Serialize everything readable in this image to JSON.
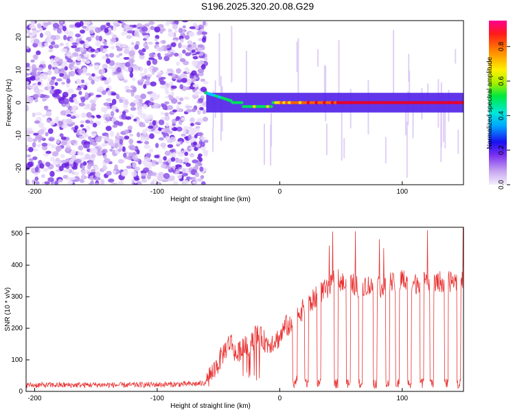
{
  "title": "S196.2025.320.20.08.G29",
  "chart_data": [
    {
      "type": "heatmap",
      "title": "S196.2025.320.20.08.G29",
      "xlabel": "Height of straight line (km)",
      "ylabel": "Frequency (Hz)",
      "xlim": [
        -207,
        150
      ],
      "ylim": [
        -25,
        25
      ],
      "xticks": [
        -200,
        -100,
        0,
        100
      ],
      "yticks": [
        -20,
        -10,
        0,
        10,
        20
      ],
      "colorbar": {
        "label": "Normalized spectral amplitude",
        "range": [
          0,
          0.95
        ],
        "ticks": [
          "0.0",
          "0.2",
          "0.4",
          "0.6",
          "0.8"
        ]
      },
      "description_regions": {
        "noise_region_x": [
          -207,
          -60
        ],
        "signal_centerline_hz": 0,
        "signal_start_x": -60
      },
      "colors": [
        "#e8d8f8",
        "#b88ae8",
        "#7a3cf0",
        "#3410f0",
        "#00c8ff",
        "#00e060",
        "#ffe000",
        "#ff6000",
        "#e8002a"
      ]
    },
    {
      "type": "line",
      "xlabel": "Height of straight line (km)",
      "ylabel": "SNR (10 * v/v)",
      "xlim": [
        -207,
        150
      ],
      "ylim": [
        0,
        520
      ],
      "xticks": [
        -200,
        -100,
        0,
        100
      ],
      "yticks": [
        0,
        100,
        200,
        300,
        400,
        500
      ],
      "series": [
        {
          "name": "SNR",
          "color": "#e83030",
          "x": [
            -207,
            -190,
            -170,
            -150,
            -130,
            -110,
            -90,
            -75,
            -62,
            -55,
            -50,
            -45,
            -40,
            -35,
            -30,
            -25,
            -20,
            -15,
            -10,
            -5,
            0,
            5,
            10,
            15,
            20,
            25,
            30,
            35,
            40,
            45,
            50,
            55,
            60,
            65,
            70,
            75,
            80,
            85,
            90,
            95,
            100,
            105,
            110,
            115,
            120,
            125,
            130,
            135,
            140,
            145,
            150
          ],
          "y": [
            20,
            20,
            20,
            21,
            20,
            21,
            22,
            23,
            25,
            60,
            90,
            130,
            160,
            110,
            150,
            130,
            180,
            170,
            150,
            160,
            170,
            210,
            200,
            250,
            260,
            280,
            300,
            320,
            320,
            360,
            350,
            330,
            340,
            330,
            340,
            330,
            340,
            320,
            350,
            330,
            360,
            330,
            340,
            350,
            340,
            330,
            350,
            340,
            350,
            350,
            350
          ]
        }
      ],
      "dips_near_zero_at": [
        12,
        22,
        32,
        46,
        56,
        66,
        78,
        88,
        96,
        106,
        116,
        124,
        136,
        146
      ]
    }
  ]
}
